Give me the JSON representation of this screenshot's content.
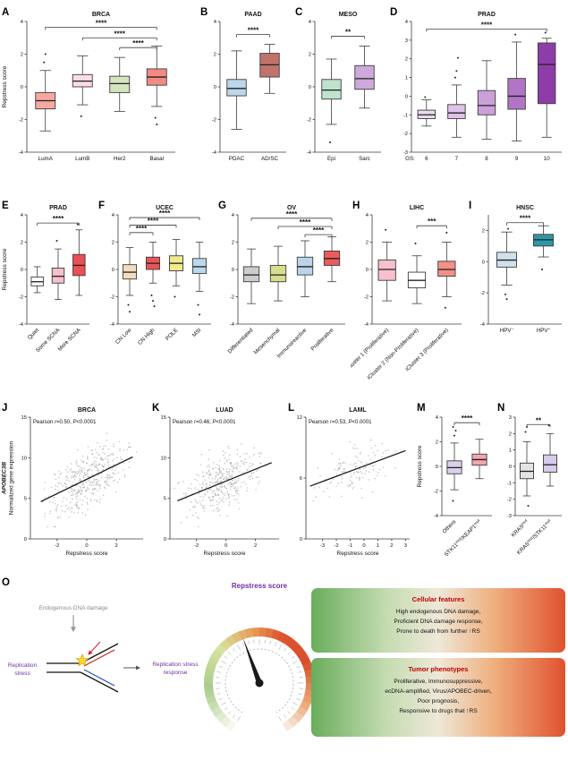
{
  "chart_data": [
    {
      "label": "A",
      "type": "box",
      "title": "BRCA",
      "ylabel": "Repstress score",
      "ylim": [
        -4,
        4
      ],
      "yticks": [
        -4,
        -2,
        0,
        2,
        4
      ],
      "categories": [
        "LumA",
        "LumB",
        "Her2",
        "Basal"
      ],
      "colors": [
        "#F5A8A0",
        "#FADCE8",
        "#D2E5BC",
        "#F28B84"
      ],
      "boxes": [
        {
          "lo": -2.7,
          "q1": -1.35,
          "med": -0.85,
          "q3": -0.35,
          "hi": 1.0,
          "out": [
            1.5,
            2.0
          ]
        },
        {
          "lo": -1.1,
          "q1": 0.0,
          "med": 0.35,
          "q3": 0.75,
          "hi": 1.9,
          "out": [
            -1.8
          ]
        },
        {
          "lo": -1.5,
          "q1": -0.35,
          "med": 0.2,
          "q3": 0.65,
          "hi": 1.8,
          "out": []
        },
        {
          "lo": -1.2,
          "q1": 0.1,
          "med": 0.6,
          "q3": 1.1,
          "hi": 2.5,
          "out": [
            -1.9,
            -2.3
          ]
        }
      ],
      "sig": [
        {
          "a": 0,
          "b": 3,
          "y": 3.65,
          "label": "****"
        },
        {
          "a": 1,
          "b": 3,
          "y": 3.0,
          "label": "****"
        },
        {
          "a": 2,
          "b": 3,
          "y": 2.4,
          "label": "****"
        }
      ]
    },
    {
      "label": "B",
      "type": "box",
      "title": "PAAD",
      "ylim": [
        -4,
        4
      ],
      "yticks": [
        -4,
        -2,
        0,
        2,
        4
      ],
      "categories": [
        "PDAC",
        "AD/SC"
      ],
      "colors": [
        "#BDD7EA",
        "#C0736C"
      ],
      "boxes": [
        {
          "lo": -2.6,
          "q1": -0.55,
          "med": -0.1,
          "q3": 0.45,
          "hi": 2.2,
          "out": []
        },
        {
          "lo": -0.4,
          "q1": 0.6,
          "med": 1.35,
          "q3": 2.05,
          "hi": 2.6,
          "out": []
        }
      ],
      "sig": [
        {
          "a": 0,
          "b": 1,
          "y": 3.2,
          "label": "****"
        }
      ]
    },
    {
      "label": "C",
      "type": "box",
      "title": "MESO",
      "ylim": [
        -4,
        4
      ],
      "yticks": [
        -4,
        -2,
        0,
        2,
        4
      ],
      "categories": [
        "Epi",
        "Sarc"
      ],
      "colors": [
        "#BFE3CE",
        "#CDA9DC"
      ],
      "boxes": [
        {
          "lo": -2.3,
          "q1": -0.75,
          "med": -0.2,
          "q3": 0.45,
          "hi": 1.7,
          "out": [
            -3.4
          ]
        },
        {
          "lo": -1.3,
          "q1": -0.15,
          "med": 0.5,
          "q3": 1.3,
          "hi": 2.5,
          "out": []
        }
      ],
      "sig": [
        {
          "a": 0,
          "b": 1,
          "y": 3.1,
          "label": "**"
        }
      ]
    },
    {
      "label": "D",
      "type": "box",
      "title": "PRAD",
      "xprefix": "GS:",
      "ylim": [
        -3,
        4
      ],
      "yticks": [
        -3,
        -2,
        -1,
        0,
        1,
        2,
        3,
        4
      ],
      "categories": [
        "6",
        "7",
        "8",
        "9",
        "10"
      ],
      "colors": [
        "#EBDAF0",
        "#DEC3E8",
        "#CBA0DA",
        "#B275C5",
        "#8E3DA8"
      ],
      "boxes": [
        {
          "lo": -1.6,
          "q1": -1.2,
          "med": -1.0,
          "q3": -0.75,
          "hi": -0.2,
          "out": [
            -0.05
          ]
        },
        {
          "lo": -2.2,
          "q1": -1.2,
          "med": -0.9,
          "q3": -0.45,
          "hi": 0.6,
          "out": [
            1.0,
            1.35,
            2.05
          ]
        },
        {
          "lo": -2.3,
          "q1": -1.0,
          "med": -0.5,
          "q3": 0.3,
          "hi": 1.9,
          "out": []
        },
        {
          "lo": -2.4,
          "q1": -0.7,
          "med": 0.0,
          "q3": 0.95,
          "hi": 2.9,
          "out": [
            3.3
          ]
        },
        {
          "lo": -2.2,
          "q1": -0.4,
          "med": 1.7,
          "q3": 2.85,
          "hi": 3.1,
          "out": [
            3.4
          ]
        }
      ],
      "sig": [
        {
          "a": 0,
          "b": 4,
          "y": 3.6,
          "label": "****"
        }
      ]
    },
    {
      "label": "E",
      "type": "box",
      "title": "PRAD",
      "ylabel": "Repstress score",
      "rot": true,
      "ylim": [
        -4,
        4
      ],
      "yticks": [
        -4,
        -2,
        0,
        2,
        4
      ],
      "categories": [
        "Quiet",
        "Some SCNA",
        "More SCNA"
      ],
      "colors": [
        "#FFFFFF",
        "#F6BFCB",
        "#E94F55"
      ],
      "boxes": [
        {
          "lo": -1.7,
          "q1": -1.2,
          "med": -0.9,
          "q3": -0.55,
          "hi": 0.2,
          "out": []
        },
        {
          "lo": -2.2,
          "q1": -1.0,
          "med": -0.5,
          "q3": 0.1,
          "hi": 1.5,
          "out": [
            2.1
          ]
        },
        {
          "lo": -1.9,
          "q1": -0.45,
          "med": 0.3,
          "q3": 1.1,
          "hi": 2.9,
          "out": [
            3.3
          ]
        }
      ],
      "sig": [
        {
          "a": 0,
          "b": 2,
          "y": 3.4,
          "label": "****"
        }
      ]
    },
    {
      "label": "F",
      "type": "box",
      "title": "UCEC",
      "rot": true,
      "ylim": [
        -4,
        4
      ],
      "yticks": [
        -4,
        -2,
        0,
        2,
        4
      ],
      "categories": [
        "CN Low",
        "CN High",
        "POLE",
        "MSI"
      ],
      "colors": [
        "#F4DCBC",
        "#EA5455",
        "#F2E88F",
        "#BBD9EC"
      ],
      "boxes": [
        {
          "lo": -1.9,
          "q1": -0.7,
          "med": -0.2,
          "q3": 0.35,
          "hi": 1.6,
          "out": [
            -2.6,
            -3.1
          ]
        },
        {
          "lo": -1.0,
          "q1": 0.0,
          "med": 0.45,
          "q3": 0.9,
          "hi": 2.0,
          "out": [
            -1.9,
            -2.3,
            -2.7
          ]
        },
        {
          "lo": -1.2,
          "q1": -0.1,
          "med": 0.45,
          "q3": 1.0,
          "hi": 2.2,
          "out": [
            -2.0
          ]
        },
        {
          "lo": -1.6,
          "q1": -0.3,
          "med": 0.2,
          "q3": 0.8,
          "hi": 2.0,
          "out": [
            -2.6,
            -3.3
          ]
        }
      ],
      "sig": [
        {
          "a": 0,
          "b": 1,
          "y": 2.7,
          "label": "****"
        },
        {
          "a": 0,
          "b": 2,
          "y": 3.25,
          "label": "****"
        },
        {
          "a": 0,
          "b": 3,
          "y": 3.8,
          "label": "****"
        }
      ]
    },
    {
      "label": "G",
      "type": "box",
      "title": "OV",
      "rot": true,
      "ylim": [
        -4,
        4
      ],
      "yticks": [
        -4,
        -2,
        0,
        2,
        4
      ],
      "categories": [
        "Differentiated",
        "Mesenchymal",
        "Immunoreactive",
        "Proliferative"
      ],
      "colors": [
        "#CCCCCC",
        "#D9DC8E",
        "#BCD3EA",
        "#EA5B5B"
      ],
      "boxes": [
        {
          "lo": -2.5,
          "q1": -0.9,
          "med": -0.4,
          "q3": 0.2,
          "hi": 1.5,
          "out": []
        },
        {
          "lo": -2.3,
          "q1": -0.9,
          "med": -0.4,
          "q3": 0.3,
          "hi": 1.7,
          "out": []
        },
        {
          "lo": -2.0,
          "q1": -0.4,
          "med": 0.2,
          "q3": 0.9,
          "hi": 2.1,
          "out": []
        },
        {
          "lo": -0.9,
          "q1": 0.3,
          "med": 0.8,
          "q3": 1.35,
          "hi": 2.4,
          "out": []
        }
      ],
      "sig": [
        {
          "a": 2,
          "b": 3,
          "y": 2.55,
          "label": "****"
        },
        {
          "a": 1,
          "b": 3,
          "y": 3.15,
          "label": "****"
        },
        {
          "a": 0,
          "b": 3,
          "y": 3.75,
          "label": "****"
        }
      ]
    },
    {
      "label": "H",
      "type": "box",
      "title": "LIHC",
      "rot": true,
      "ylim": [
        -4,
        4
      ],
      "yticks": [
        -4,
        -2,
        0,
        2,
        4
      ],
      "categories": [
        "iCluster 1 (Proliferative)",
        "iCluster 2 (Non-Proliferative)",
        "iCluster 3 (Proliferative)"
      ],
      "colors": [
        "#F6C0CC",
        "#FFFFFF",
        "#F2908A"
      ],
      "boxes": [
        {
          "lo": -2.3,
          "q1": -0.8,
          "med": 0.0,
          "q3": 0.7,
          "hi": 2.0,
          "out": [
            2.9
          ]
        },
        {
          "lo": -2.5,
          "q1": -1.35,
          "med": -0.8,
          "q3": -0.2,
          "hi": 1.0,
          "out": [
            1.9
          ]
        },
        {
          "lo": -2.0,
          "q1": -0.5,
          "med": 0.0,
          "q3": 0.6,
          "hi": 2.0,
          "out": [
            -2.8,
            2.7
          ]
        }
      ],
      "sig": [
        {
          "a": 1,
          "b": 2,
          "y": 3.2,
          "label": "***"
        }
      ]
    },
    {
      "label": "I",
      "type": "box",
      "title": "HNSC",
      "ylim": [
        -4,
        3
      ],
      "yticks": [
        -4,
        -2,
        0,
        2
      ],
      "categories": [
        "HPV^{−}",
        "HPV^{+}"
      ],
      "colors": [
        "#CFE2EC",
        "#2F96A6"
      ],
      "boxes": [
        {
          "lo": -1.5,
          "q1": -0.35,
          "med": 0.1,
          "q3": 0.6,
          "hi": 1.9,
          "out": [
            -2.1,
            -2.4,
            2.1
          ]
        },
        {
          "lo": 0.3,
          "q1": 1.0,
          "med": 1.4,
          "q3": 1.75,
          "hi": 2.3,
          "out": [
            -0.5
          ]
        }
      ],
      "sig": [
        {
          "a": 0,
          "b": 1,
          "y": 2.5,
          "label": "****"
        }
      ]
    },
    {
      "label": "J",
      "type": "scatter",
      "title": "BRCA",
      "annotation": {
        "pearson_r": "0.50",
        "p": "<0.0001"
      },
      "xlabel": "Repstress score",
      "ylabels": [
        "APOBEC3B",
        "Normalized gene expression"
      ],
      "xlim": [
        -3.8,
        3.8
      ],
      "xticks": [
        -2,
        0,
        2
      ],
      "ylim": [
        0,
        15
      ],
      "yticks": [
        0,
        5,
        10,
        15
      ],
      "line": [
        [
          -3.1,
          4.6
        ],
        [
          3.1,
          10.1
        ]
      ]
    },
    {
      "label": "K",
      "type": "scatter",
      "title": "LUAD",
      "annotation": {
        "pearson_r": "0.46",
        "p": "<0.0001"
      },
      "xlabel": "Repstress score",
      "xlim": [
        -3.8,
        3.6
      ],
      "xticks": [
        -2,
        0,
        2
      ],
      "ylim": [
        0,
        15
      ],
      "yticks": [
        0,
        5,
        10,
        15
      ],
      "line": [
        [
          -3.3,
          4.7
        ],
        [
          3.1,
          9.4
        ]
      ]
    },
    {
      "label": "L",
      "type": "scatter",
      "title": "LAML",
      "annotation": {
        "pearson_r": "0.53",
        "p": "<0.0001"
      },
      "xlabel": "Repstress score",
      "xlim": [
        -4.2,
        3.3
      ],
      "xticks": [
        -3,
        -2,
        -1,
        0,
        1,
        2,
        3
      ],
      "ylim": [
        0,
        12
      ],
      "yticks": [
        0,
        6,
        12
      ],
      "line": [
        [
          -3.9,
          5.2
        ],
        [
          3.0,
          8.7
        ]
      ]
    },
    {
      "label": "M",
      "type": "box",
      "ylabel": "Repstress score",
      "rot": true,
      "ylim": [
        -4,
        4
      ],
      "yticks": [
        -4,
        -2,
        0,
        2,
        4
      ],
      "categories": [
        "Others",
        "STK11^{mut}/KEAP1^{mut}"
      ],
      "colors": [
        "#DCD0EA",
        "#F4A5AD"
      ],
      "boxes": [
        {
          "lo": -1.9,
          "q1": -0.6,
          "med": -0.1,
          "q3": 0.45,
          "hi": 1.9,
          "out": [
            -2.8,
            2.5,
            2.9,
            3.2
          ]
        },
        {
          "lo": -1.0,
          "q1": 0.1,
          "med": 0.55,
          "q3": 1.0,
          "hi": 2.2,
          "out": []
        }
      ],
      "sig": [
        {
          "a": 0,
          "b": 1,
          "y": 3.55,
          "label": "****"
        }
      ]
    },
    {
      "label": "N",
      "type": "box",
      "rot": true,
      "ylim": [
        -3,
        3
      ],
      "yticks": [
        -3,
        -2,
        -1,
        0,
        1,
        2,
        3
      ],
      "categories": [
        "KRAS^{mut}",
        "KRAS^{mut}/STK11^{mut}"
      ],
      "colors": [
        "#E4E4E4",
        "#D8CBEA"
      ],
      "boxes": [
        {
          "lo": -1.8,
          "q1": -0.75,
          "med": -0.3,
          "q3": 0.2,
          "hi": 1.5,
          "out": [
            2.1,
            2.4,
            -2.4
          ]
        },
        {
          "lo": -1.2,
          "q1": -0.35,
          "med": 0.1,
          "q3": 0.7,
          "hi": 2.0,
          "out": [
            2.5
          ]
        }
      ],
      "sig": [
        {
          "a": 0,
          "b": 1,
          "y": 2.55,
          "label": "**"
        }
      ]
    },
    {
      "label": "O",
      "type": "diagram",
      "texts": {
        "endogenous": "Endogenous DNA damage",
        "rep_stress": [
          "Replication",
          "stress"
        ],
        "response": [
          "Replication stress",
          "response"
        ],
        "gauge_title": "Repstress score"
      },
      "feature_boxes": [
        {
          "title": "Cellular features",
          "lines": [
            "High endogenous DNA damage,",
            "Proficient DNA damage response,",
            "Prone to death from further ↑RS"
          ]
        },
        {
          "title": "Tumor phenotypes",
          "lines": [
            "Proliferative, Immunosuppressive,",
            "ecDNA-amplified, Virus/APOBEC-driven,",
            "Poor prognosis,",
            "Responsive to drugs that ↑RS"
          ]
        }
      ],
      "colors": {
        "purple": "#7030A0",
        "gray": "#8A8A8A",
        "title_red": "#C00000"
      }
    }
  ]
}
